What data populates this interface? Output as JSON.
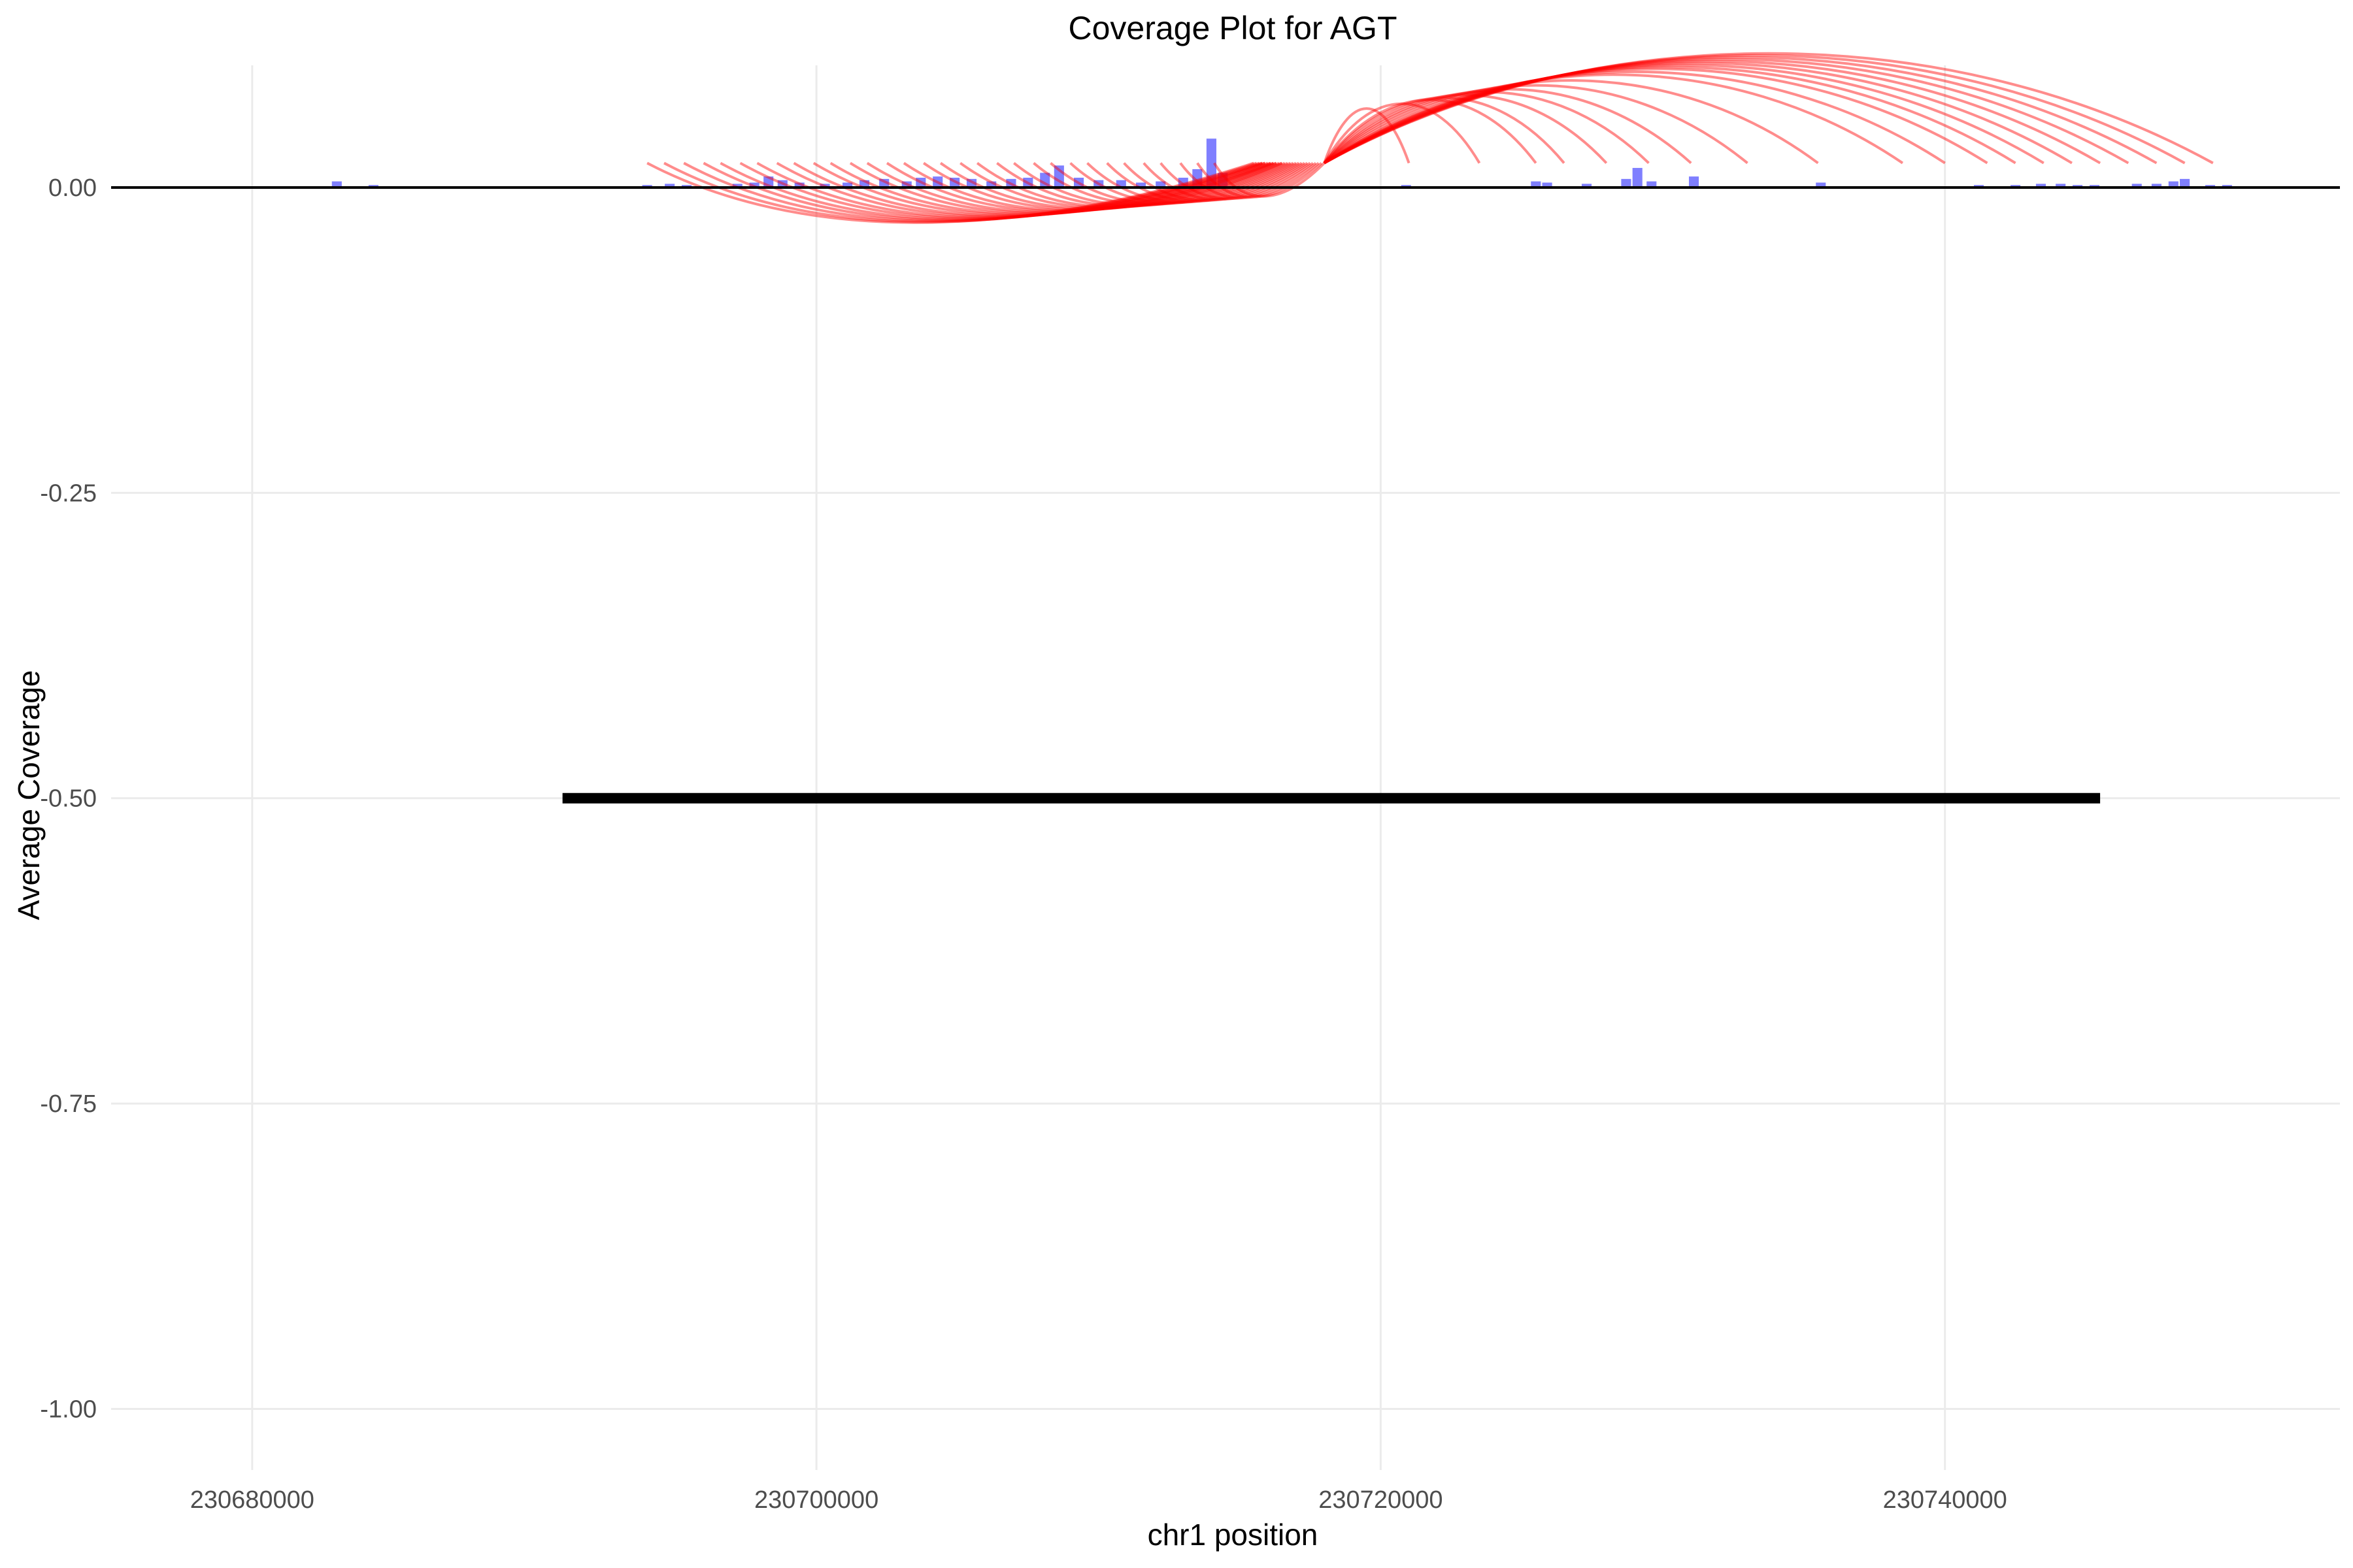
{
  "chart_data": {
    "type": "coverage",
    "title": "Coverage Plot for AGT",
    "xlabel": "chr1 position",
    "ylabel": "Average Coverage",
    "xlim": [
      230675000,
      230754000
    ],
    "ylim": [
      -1.05,
      0.1
    ],
    "x_ticks": [
      230680000,
      230700000,
      230720000,
      230740000
    ],
    "x_tick_labels": [
      "230680000",
      "230700000",
      "230720000",
      "230740000"
    ],
    "y_ticks": [
      0.0,
      -0.25,
      -0.5,
      -0.75,
      -1.0
    ],
    "y_tick_labels": [
      "0.00",
      "-0.25",
      "-0.50",
      "-0.75",
      "-1.00"
    ],
    "grid": true,
    "baseline_y": 0.0,
    "colors": {
      "coverage_bars": "#0000ff",
      "junction_arcs": "#ff0000",
      "gene_model": "#000000",
      "grid": "#ebebeb"
    },
    "gene_model": {
      "start": 230691000,
      "end": 230745500,
      "y": -0.5
    },
    "coverage_bars": [
      {
        "x": 230683000,
        "y": 0.005
      },
      {
        "x": 230684300,
        "y": 0.002
      },
      {
        "x": 230694000,
        "y": 0.002
      },
      {
        "x": 230694800,
        "y": 0.003
      },
      {
        "x": 230695400,
        "y": 0.002
      },
      {
        "x": 230697200,
        "y": 0.003
      },
      {
        "x": 230697800,
        "y": 0.004
      },
      {
        "x": 230698300,
        "y": 0.009
      },
      {
        "x": 230698800,
        "y": 0.006
      },
      {
        "x": 230699400,
        "y": 0.004
      },
      {
        "x": 230700300,
        "y": 0.003
      },
      {
        "x": 230701100,
        "y": 0.004
      },
      {
        "x": 230701700,
        "y": 0.006
      },
      {
        "x": 230702400,
        "y": 0.007
      },
      {
        "x": 230703200,
        "y": 0.005
      },
      {
        "x": 230703700,
        "y": 0.008
      },
      {
        "x": 230704300,
        "y": 0.009
      },
      {
        "x": 230704900,
        "y": 0.008
      },
      {
        "x": 230705500,
        "y": 0.007
      },
      {
        "x": 230706200,
        "y": 0.005
      },
      {
        "x": 230706900,
        "y": 0.007
      },
      {
        "x": 230707500,
        "y": 0.008
      },
      {
        "x": 230708100,
        "y": 0.012
      },
      {
        "x": 230708600,
        "y": 0.018
      },
      {
        "x": 230709300,
        "y": 0.008
      },
      {
        "x": 230710000,
        "y": 0.006
      },
      {
        "x": 230710800,
        "y": 0.006
      },
      {
        "x": 230711500,
        "y": 0.004
      },
      {
        "x": 230712200,
        "y": 0.005
      },
      {
        "x": 230713000,
        "y": 0.008
      },
      {
        "x": 230713500,
        "y": 0.015
      },
      {
        "x": 230714000,
        "y": 0.04
      },
      {
        "x": 230714400,
        "y": 0.012
      },
      {
        "x": 230720900,
        "y": 0.002
      },
      {
        "x": 230725500,
        "y": 0.005
      },
      {
        "x": 230725900,
        "y": 0.004
      },
      {
        "x": 230727300,
        "y": 0.003
      },
      {
        "x": 230728700,
        "y": 0.007
      },
      {
        "x": 230729100,
        "y": 0.016
      },
      {
        "x": 230729600,
        "y": 0.005
      },
      {
        "x": 230731100,
        "y": 0.009
      },
      {
        "x": 230735600,
        "y": 0.004
      },
      {
        "x": 230741200,
        "y": 0.002
      },
      {
        "x": 230742500,
        "y": 0.002
      },
      {
        "x": 230743400,
        "y": 0.003
      },
      {
        "x": 230744100,
        "y": 0.003
      },
      {
        "x": 230744700,
        "y": 0.002
      },
      {
        "x": 230745300,
        "y": 0.002
      },
      {
        "x": 230746800,
        "y": 0.003
      },
      {
        "x": 230747500,
        "y": 0.003
      },
      {
        "x": 230748100,
        "y": 0.005
      },
      {
        "x": 230748500,
        "y": 0.007
      },
      {
        "x": 230749400,
        "y": 0.002
      },
      {
        "x": 230750000,
        "y": 0.002
      }
    ],
    "junctions": [
      {
        "start": 230694000,
        "end": 230715500
      },
      {
        "start": 230694600,
        "end": 230715600
      },
      {
        "start": 230695300,
        "end": 230715700
      },
      {
        "start": 230696000,
        "end": 230715800
      },
      {
        "start": 230696600,
        "end": 230715800
      },
      {
        "start": 230697300,
        "end": 230715900
      },
      {
        "start": 230697900,
        "end": 230715900
      },
      {
        "start": 230698600,
        "end": 230716000
      },
      {
        "start": 230699200,
        "end": 230716100
      },
      {
        "start": 230699900,
        "end": 230716100
      },
      {
        "start": 230700500,
        "end": 230716200
      },
      {
        "start": 230701200,
        "end": 230716200
      },
      {
        "start": 230701800,
        "end": 230716300
      },
      {
        "start": 230702500,
        "end": 230716300
      },
      {
        "start": 230703100,
        "end": 230716400
      },
      {
        "start": 230703800,
        "end": 230716500
      },
      {
        "start": 230704400,
        "end": 230716500
      },
      {
        "start": 230705100,
        "end": 230716600
      },
      {
        "start": 230705700,
        "end": 230716700
      },
      {
        "start": 230706400,
        "end": 230716800
      },
      {
        "start": 230707000,
        "end": 230716900
      },
      {
        "start": 230707700,
        "end": 230717000
      },
      {
        "start": 230708300,
        "end": 230717100
      },
      {
        "start": 230709000,
        "end": 230717200
      },
      {
        "start": 230709600,
        "end": 230717300
      },
      {
        "start": 230710300,
        "end": 230717400
      },
      {
        "start": 230710900,
        "end": 230717500
      },
      {
        "start": 230711600,
        "end": 230717600
      },
      {
        "start": 230712200,
        "end": 230717700
      },
      {
        "start": 230712900,
        "end": 230717800
      },
      {
        "start": 230713500,
        "end": 230717900
      },
      {
        "start": 230714100,
        "end": 230718000
      },
      {
        "start": 230718000,
        "end": 230721000
      },
      {
        "start": 230718000,
        "end": 230723500
      },
      {
        "start": 230718000,
        "end": 230725500
      },
      {
        "start": 230718000,
        "end": 230726500
      },
      {
        "start": 230718000,
        "end": 230728000
      },
      {
        "start": 230718000,
        "end": 230729500
      },
      {
        "start": 230718000,
        "end": 230731000
      },
      {
        "start": 230718000,
        "end": 230733000
      },
      {
        "start": 230718000,
        "end": 230735500
      },
      {
        "start": 230718000,
        "end": 230738500
      },
      {
        "start": 230718000,
        "end": 230740000
      },
      {
        "start": 230718000,
        "end": 230741500
      },
      {
        "start": 230718000,
        "end": 230742500
      },
      {
        "start": 230718000,
        "end": 230743500
      },
      {
        "start": 230718000,
        "end": 230744500
      },
      {
        "start": 230718000,
        "end": 230745500
      },
      {
        "start": 230718000,
        "end": 230746500
      },
      {
        "start": 230718000,
        "end": 230747500
      },
      {
        "start": 230718000,
        "end": 230748500
      },
      {
        "start": 230718000,
        "end": 230749500
      }
    ]
  }
}
